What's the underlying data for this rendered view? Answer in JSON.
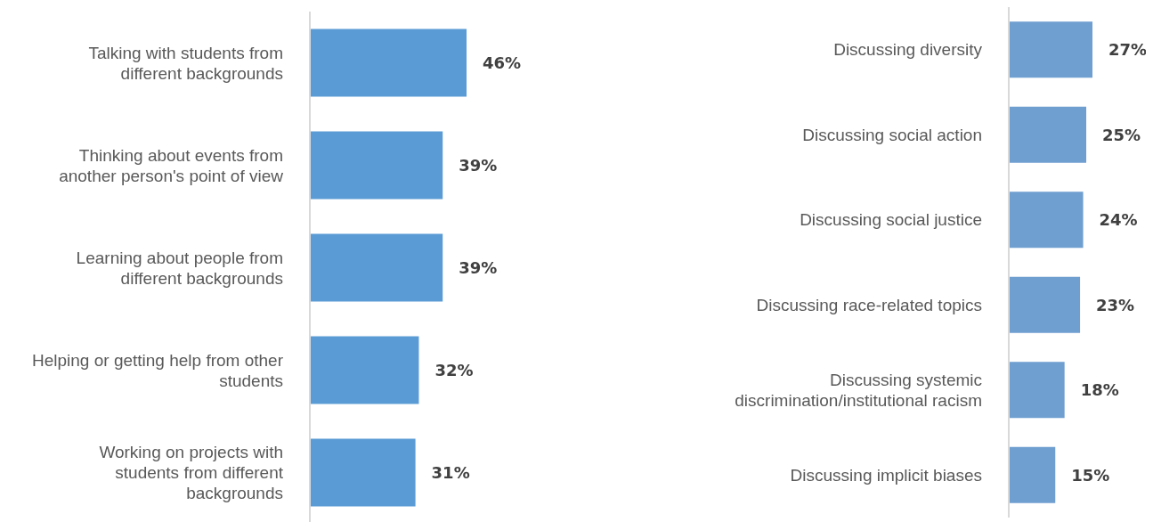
{
  "chart_data": [
    {
      "type": "bar",
      "orientation": "horizontal",
      "categories": [
        "Talking with students from different backgrounds",
        "Thinking about events from another person's point of view",
        "Learning about people from different backgrounds",
        "Helping or getting help from other students",
        "Working on projects with students from different backgrounds"
      ],
      "values": [
        46,
        39,
        39,
        32,
        31
      ],
      "value_labels": [
        "46%",
        "39%",
        "39%",
        "32%",
        "31%"
      ],
      "color": "#5b9bd5"
    },
    {
      "type": "bar",
      "orientation": "horizontal",
      "categories": [
        "Discussing diversity",
        "Discussing social action",
        "Discussing social justice",
        "Discussing race-related topics",
        "Discussing systemic discrimination/institutional racism",
        "Discussing implicit biases"
      ],
      "values": [
        27,
        25,
        24,
        23,
        18,
        15
      ],
      "value_labels": [
        "27%",
        "25%",
        "24%",
        "23%",
        "18%",
        "15%"
      ],
      "color": "#6f9ed0"
    }
  ]
}
